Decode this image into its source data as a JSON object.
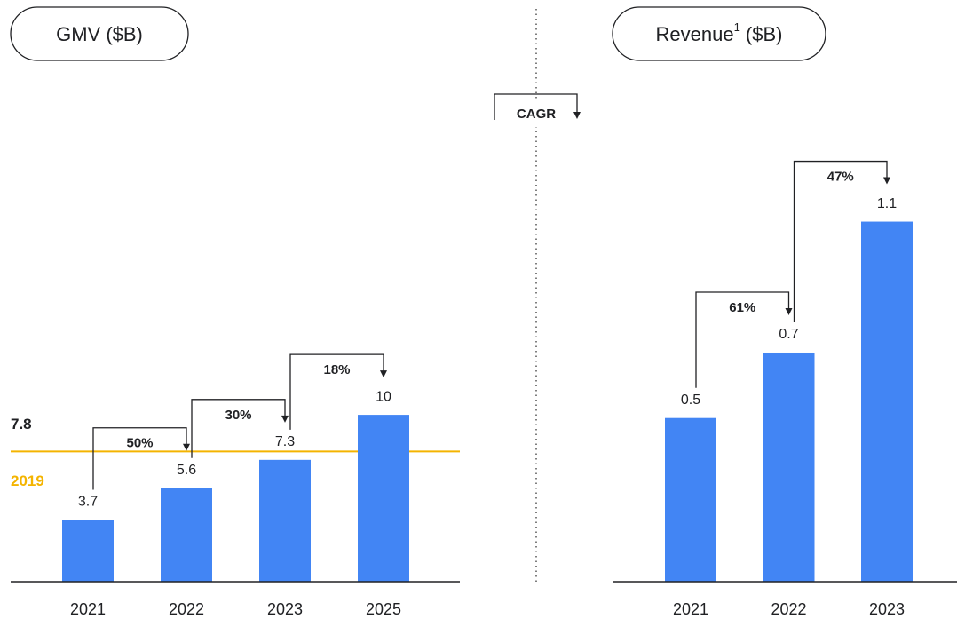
{
  "cagr_legend": "CAGR",
  "chart_data": [
    {
      "type": "bar",
      "title": "GMV ($B)",
      "categories": [
        "2021",
        "2022",
        "2023",
        "2025"
      ],
      "values": [
        3.7,
        5.6,
        7.3,
        10
      ],
      "color": "#4285f4",
      "ylim": [
        0,
        30.6
      ],
      "annotations": [
        "50%",
        "30%",
        "18%"
      ],
      "reference": {
        "value": 7.8,
        "label": "2019",
        "color": "#f4b400"
      }
    },
    {
      "type": "bar",
      "title": "Revenue",
      "title_note": "1",
      "title_suffix": " ($B)",
      "categories": [
        "2021",
        "2022",
        "2023"
      ],
      "values": [
        0.5,
        0.7,
        1.1
      ],
      "color": "#4285f4",
      "ylim": [
        0,
        1.56
      ],
      "annotations": [
        "61%",
        "47%"
      ]
    }
  ]
}
